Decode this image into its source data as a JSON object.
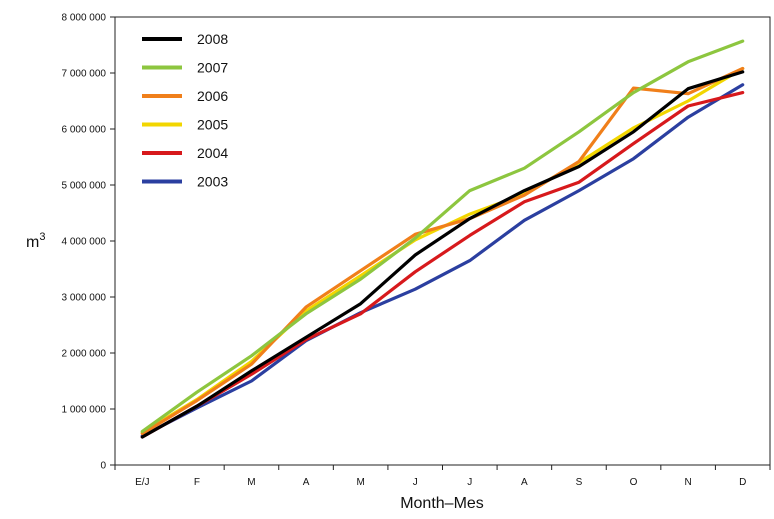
{
  "chart_data": {
    "type": "line",
    "title": "",
    "xlabel": "Month–Mes",
    "ylabel": "m",
    "ylabel_superscript": "3",
    "ylim": [
      0,
      8000000
    ],
    "y_ticks": [
      0,
      1000000,
      2000000,
      3000000,
      4000000,
      5000000,
      6000000,
      7000000,
      8000000
    ],
    "y_tick_labels": [
      "0",
      "1 000 000",
      "2 000 000",
      "3 000 000",
      "4 000 000",
      "5 000 000",
      "6 000 000",
      "7 000 000",
      "8 000 000"
    ],
    "categories": [
      "E/J",
      "F",
      "M",
      "A",
      "M",
      "J",
      "J",
      "A",
      "S",
      "O",
      "N",
      "D"
    ],
    "grid": false,
    "legend_position": "top-left",
    "series": [
      {
        "name": "2008",
        "color": "#000000",
        "values": [
          500000,
          1050000,
          1680000,
          2280000,
          2880000,
          3750000,
          4400000,
          4900000,
          5330000,
          5950000,
          6720000,
          7020000
        ]
      },
      {
        "name": "2007",
        "color": "#8dc63f",
        "values": [
          600000,
          1300000,
          1950000,
          2700000,
          3320000,
          4050000,
          4900000,
          5300000,
          5950000,
          6650000,
          7200000,
          7570000
        ]
      },
      {
        "name": "2006",
        "color": "#f07f1a",
        "values": [
          560000,
          1150000,
          1800000,
          2820000,
          3470000,
          4120000,
          4400000,
          4820000,
          5420000,
          6730000,
          6630000,
          7080000
        ]
      },
      {
        "name": "2005",
        "color": "#f2d600",
        "values": [
          580000,
          1170000,
          1850000,
          2750000,
          3380000,
          4020000,
          4480000,
          4840000,
          5400000,
          6020000,
          6500000,
          7080000
        ]
      },
      {
        "name": "2004",
        "color": "#d7191c",
        "values": [
          500000,
          1050000,
          1620000,
          2240000,
          2700000,
          3450000,
          4100000,
          4700000,
          5050000,
          5740000,
          6410000,
          6650000
        ]
      },
      {
        "name": "2003",
        "color": "#2b3fa0",
        "values": [
          520000,
          1020000,
          1500000,
          2220000,
          2720000,
          3140000,
          3650000,
          4370000,
          4900000,
          5470000,
          6210000,
          6790000
        ]
      }
    ]
  }
}
